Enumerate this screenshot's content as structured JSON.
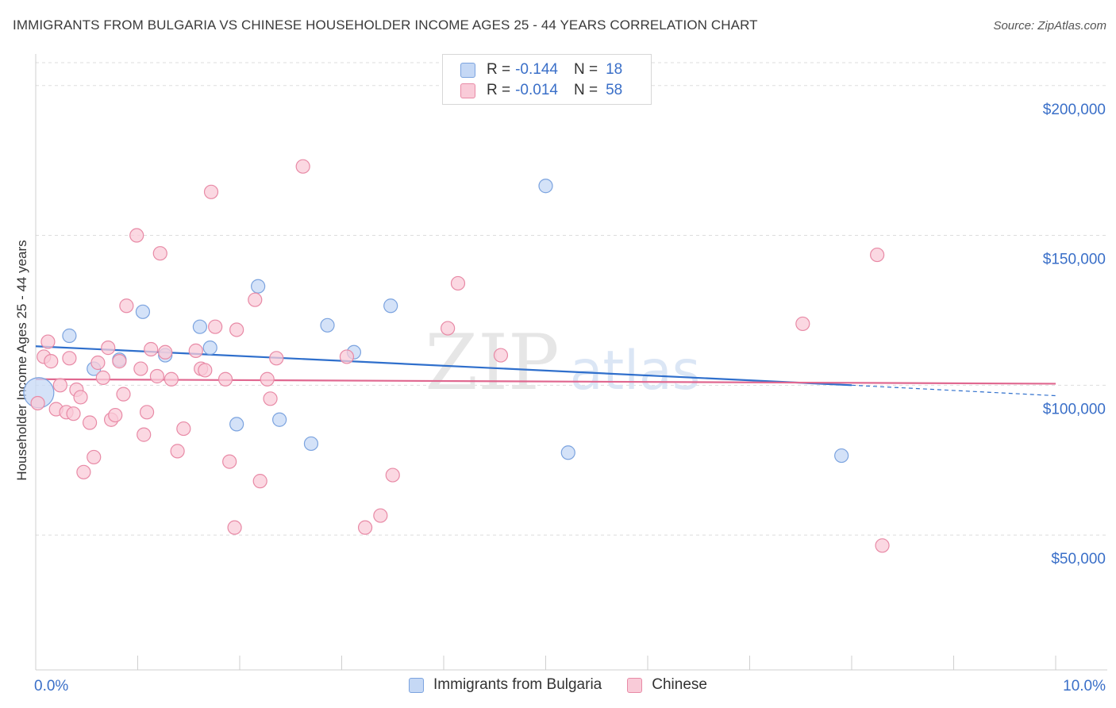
{
  "title": "IMMIGRANTS FROM BULGARIA VS CHINESE HOUSEHOLDER INCOME AGES 25 - 44 YEARS CORRELATION CHART",
  "source": "Source: ZipAtlas.com",
  "watermark": {
    "zip": "ZIP",
    "atlas": "atlas"
  },
  "legend": {
    "rows": [
      {
        "r_label": "R =",
        "r_value": "-0.144",
        "n_label": "N =",
        "n_value": "18"
      },
      {
        "r_label": "R =",
        "r_value": "-0.014",
        "n_label": "N =",
        "n_value": "58"
      }
    ]
  },
  "colors": {
    "blue_fill": "#c5d8f5",
    "blue_stroke": "#7ba3df",
    "blue_line": "#2f6fcc",
    "pink_fill": "#f9cbd8",
    "pink_stroke": "#e88aa6",
    "pink_line": "#e06890",
    "tick_label": "#3a6fc8",
    "grid": "#dddddd"
  },
  "chart_data": {
    "type": "scatter",
    "title": "IMMIGRANTS FROM BULGARIA VS CHINESE HOUSEHOLDER INCOME AGES 25 - 44 YEARS CORRELATION CHART",
    "xlabel": "",
    "ylabel": "Householder Income Ages 25 - 44 years",
    "xlim": [
      0,
      10
    ],
    "ylim": [
      5000,
      210000
    ],
    "x_tick_labels": [
      "0.0%",
      "10.0%"
    ],
    "y_ticks": [
      50000,
      100000,
      150000,
      200000
    ],
    "y_tick_labels": [
      "$50,000",
      "$100,000",
      "$150,000",
      "$200,000"
    ],
    "grid": true,
    "legend_position": "top-center",
    "series": [
      {
        "name": "Immigrants from Bulgaria",
        "color": "blue",
        "points": [
          [
            0.03,
            97500
          ],
          [
            0.33,
            116500
          ],
          [
            0.57,
            105500
          ],
          [
            0.82,
            108500
          ],
          [
            1.05,
            124500
          ],
          [
            1.27,
            110000
          ],
          [
            1.61,
            119500
          ],
          [
            1.71,
            112500
          ],
          [
            1.97,
            87000
          ],
          [
            2.18,
            133000
          ],
          [
            2.39,
            88500
          ],
          [
            2.7,
            80500
          ],
          [
            2.86,
            120000
          ],
          [
            3.12,
            111000
          ],
          [
            3.48,
            126500
          ],
          [
            5.0,
            166500
          ],
          [
            5.22,
            77500
          ],
          [
            7.9,
            76500
          ]
        ],
        "trend": {
          "x": [
            0,
            8.0
          ],
          "y": [
            113000,
            100000
          ],
          "dashed_to": [
            10,
            96500
          ]
        }
      },
      {
        "name": "Chinese",
        "color": "pink",
        "points": [
          [
            0.02,
            94000
          ],
          [
            0.08,
            109500
          ],
          [
            0.12,
            114500
          ],
          [
            0.15,
            108000
          ],
          [
            0.2,
            92000
          ],
          [
            0.24,
            100000
          ],
          [
            0.3,
            91000
          ],
          [
            0.33,
            109000
          ],
          [
            0.37,
            90500
          ],
          [
            0.4,
            98500
          ],
          [
            0.44,
            96000
          ],
          [
            0.47,
            71000
          ],
          [
            0.53,
            87500
          ],
          [
            0.57,
            76000
          ],
          [
            0.61,
            107500
          ],
          [
            0.66,
            102500
          ],
          [
            0.71,
            112500
          ],
          [
            0.74,
            88500
          ],
          [
            0.78,
            90000
          ],
          [
            0.82,
            108000
          ],
          [
            0.86,
            97000
          ],
          [
            0.89,
            126500
          ],
          [
            0.99,
            150000
          ],
          [
            1.03,
            105500
          ],
          [
            1.06,
            83500
          ],
          [
            1.09,
            91000
          ],
          [
            1.13,
            112000
          ],
          [
            1.19,
            103000
          ],
          [
            1.22,
            144000
          ],
          [
            1.27,
            111000
          ],
          [
            1.33,
            102000
          ],
          [
            1.39,
            78000
          ],
          [
            1.45,
            85500
          ],
          [
            1.57,
            111500
          ],
          [
            1.62,
            105500
          ],
          [
            1.66,
            105000
          ],
          [
            1.72,
            164500
          ],
          [
            1.76,
            119500
          ],
          [
            1.86,
            102000
          ],
          [
            1.9,
            74500
          ],
          [
            1.95,
            52500
          ],
          [
            1.97,
            118500
          ],
          [
            2.15,
            128500
          ],
          [
            2.2,
            68000
          ],
          [
            2.27,
            102000
          ],
          [
            2.3,
            95500
          ],
          [
            2.36,
            109000
          ],
          [
            2.62,
            173000
          ],
          [
            3.05,
            109500
          ],
          [
            3.23,
            52500
          ],
          [
            3.38,
            56500
          ],
          [
            3.5,
            70000
          ],
          [
            4.04,
            119000
          ],
          [
            4.14,
            134000
          ],
          [
            4.56,
            110000
          ],
          [
            7.52,
            120500
          ],
          [
            8.25,
            143500
          ],
          [
            8.3,
            46500
          ]
        ],
        "trend": {
          "x": [
            0,
            10
          ],
          "y": [
            102000,
            100500
          ]
        }
      }
    ]
  },
  "bottom_legend": [
    {
      "label": "Immigrants from Bulgaria"
    },
    {
      "label": "Chinese"
    }
  ]
}
